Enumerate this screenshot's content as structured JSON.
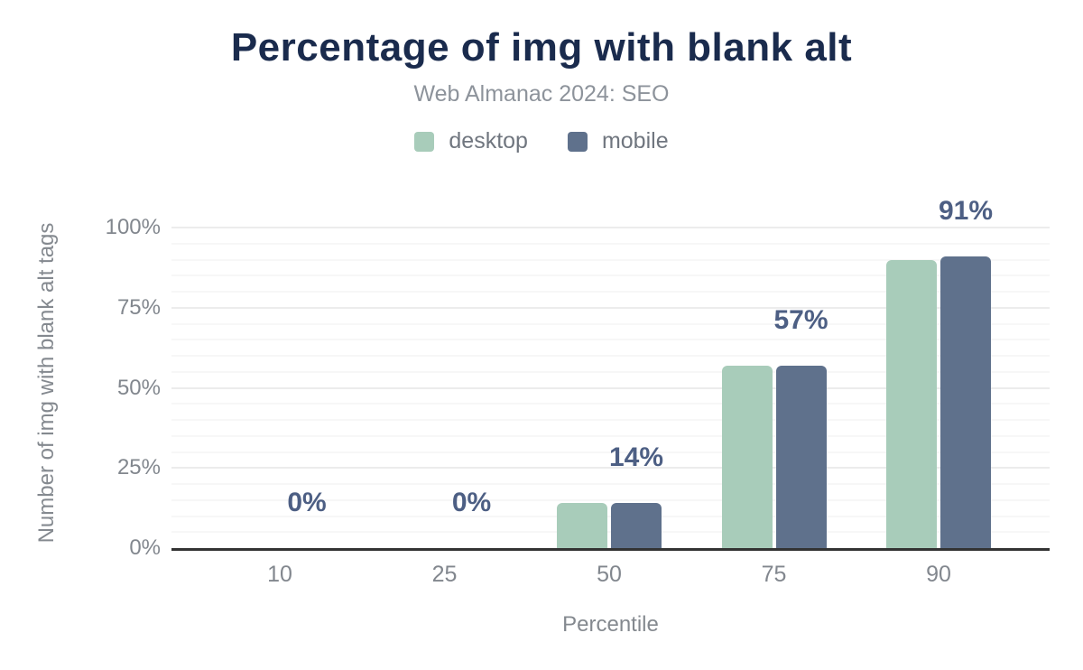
{
  "title": "Percentage of img with blank alt",
  "subtitle": "Web Almanac 2024: SEO",
  "legend": {
    "items": [
      {
        "label": "desktop",
        "color": "#a8ccba"
      },
      {
        "label": "mobile",
        "color": "#5f718c"
      }
    ]
  },
  "colors": {
    "title_text": "#1a2b4d",
    "subtitle_text": "#8d939b",
    "desktop_bar": "#a8ccba",
    "mobile_bar": "#5f718c",
    "data_label_text": "#4d5f84",
    "axis_text": "#82878e",
    "axis_line": "#333333",
    "grid_major": "#ececec",
    "grid_minor": "#f7f7f7"
  },
  "chart_data": {
    "type": "bar",
    "title": "Percentage of img with blank alt",
    "subtitle": "Web Almanac 2024: SEO",
    "categories": [
      "10",
      "25",
      "50",
      "75",
      "90"
    ],
    "series": [
      {
        "name": "desktop",
        "color": "#a8ccba",
        "values": [
          0,
          0,
          14,
          57,
          90
        ]
      },
      {
        "name": "mobile",
        "color": "#5f718c",
        "values": [
          0,
          0,
          14,
          57,
          91
        ]
      }
    ],
    "data_labels": [
      "0%",
      "0%",
      "14%",
      "57%",
      "91%"
    ],
    "data_labels_anchor": "mobile",
    "xlabel": "Percentile",
    "ylabel": "Number of img with blank alt tags",
    "y_ticks": [
      "0%",
      "25%",
      "50%",
      "75%",
      "100%"
    ],
    "y_tick_values": [
      0,
      25,
      50,
      75,
      100
    ],
    "ylim": [
      0,
      100
    ],
    "grid": "horizontal, minor every 5%, major every 25%",
    "legend_position": "top"
  }
}
